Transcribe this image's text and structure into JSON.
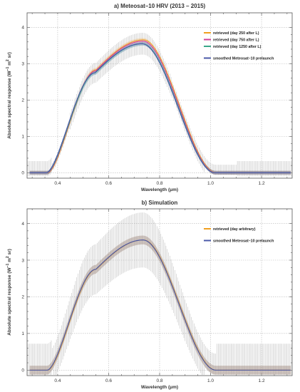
{
  "chart_data": [
    {
      "type": "line",
      "title": "a) Meteosat–10 HRV (2013 – 2015)",
      "xlabel": "Wavelength (μm)",
      "ylabel_parts": [
        "Absolute spectral response (W",
        "−1",
        " m",
        "2",
        " sr)"
      ],
      "xlim": [
        0.28,
        1.32
      ],
      "ylim": [
        -0.15,
        4.4
      ],
      "xticks": [
        "0.4",
        "0.6",
        "0.8",
        "1.0",
        "1.2"
      ],
      "yticks": [
        "0",
        "1",
        "2",
        "3",
        "4"
      ],
      "grid": true,
      "legend_position": "top-right",
      "peak_x": 0.735,
      "peak_y": 3.55,
      "error_bar_halfwidth": 0.35,
      "series": [
        {
          "name": "retrieved (day 250 after L)",
          "color": "#f0a020",
          "scale": 1.03
        },
        {
          "name": "retrieved (day 750 after L)",
          "color": "#d0409a",
          "scale": 1.02
        },
        {
          "name": "retrieved (day 1250 after L)",
          "color": "#3aa88a",
          "scale": 1.0
        },
        {
          "name": "smoothed Meteosat–10 prelaunch",
          "color": "#4b5aa8",
          "scale": 1.0
        }
      ]
    },
    {
      "type": "line",
      "title": "b) Simulation",
      "xlabel": "Wavelength (μm)",
      "ylabel_parts": [
        "Absolute spectral response (W",
        "−1",
        " m",
        "2",
        " sr)"
      ],
      "xlim": [
        0.28,
        1.32
      ],
      "ylim": [
        -0.15,
        4.4
      ],
      "xticks": [
        "0.4",
        "0.6",
        "0.8",
        "1.0",
        "1.2"
      ],
      "yticks": [
        "0",
        "1",
        "2",
        "3",
        "4"
      ],
      "grid": true,
      "legend_position": "top-right",
      "peak_x": 0.735,
      "peak_y": 3.55,
      "error_bar_halfwidth": 0.75,
      "series": [
        {
          "name": "retrieved (day arbitrary)",
          "color": "#f0a020",
          "scale": 1.0
        },
        {
          "name": "smoothed Meteosat–10 prelaunch",
          "color": "#4b5aa8",
          "scale": 1.0
        }
      ]
    }
  ]
}
